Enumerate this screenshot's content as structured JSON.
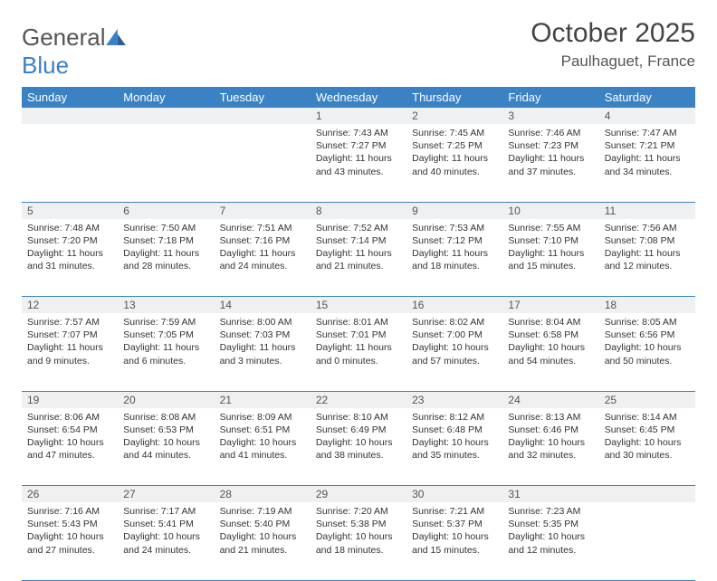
{
  "logo": {
    "text_gray": "General",
    "text_blue": "Blue"
  },
  "title": "October 2025",
  "location": "Paulhaguet, France",
  "colors": {
    "brand_blue": "#3b82c4",
    "daynum_bg": "#eef0f2",
    "text": "#333333"
  },
  "day_headers": [
    "Sunday",
    "Monday",
    "Tuesday",
    "Wednesday",
    "Thursday",
    "Friday",
    "Saturday"
  ],
  "weeks": [
    [
      null,
      null,
      null,
      {
        "n": "1",
        "sr": "7:43 AM",
        "ss": "7:27 PM",
        "dl": "11 hours and 43 minutes."
      },
      {
        "n": "2",
        "sr": "7:45 AM",
        "ss": "7:25 PM",
        "dl": "11 hours and 40 minutes."
      },
      {
        "n": "3",
        "sr": "7:46 AM",
        "ss": "7:23 PM",
        "dl": "11 hours and 37 minutes."
      },
      {
        "n": "4",
        "sr": "7:47 AM",
        "ss": "7:21 PM",
        "dl": "11 hours and 34 minutes."
      }
    ],
    [
      {
        "n": "5",
        "sr": "7:48 AM",
        "ss": "7:20 PM",
        "dl": "11 hours and 31 minutes."
      },
      {
        "n": "6",
        "sr": "7:50 AM",
        "ss": "7:18 PM",
        "dl": "11 hours and 28 minutes."
      },
      {
        "n": "7",
        "sr": "7:51 AM",
        "ss": "7:16 PM",
        "dl": "11 hours and 24 minutes."
      },
      {
        "n": "8",
        "sr": "7:52 AM",
        "ss": "7:14 PM",
        "dl": "11 hours and 21 minutes."
      },
      {
        "n": "9",
        "sr": "7:53 AM",
        "ss": "7:12 PM",
        "dl": "11 hours and 18 minutes."
      },
      {
        "n": "10",
        "sr": "7:55 AM",
        "ss": "7:10 PM",
        "dl": "11 hours and 15 minutes."
      },
      {
        "n": "11",
        "sr": "7:56 AM",
        "ss": "7:08 PM",
        "dl": "11 hours and 12 minutes."
      }
    ],
    [
      {
        "n": "12",
        "sr": "7:57 AM",
        "ss": "7:07 PM",
        "dl": "11 hours and 9 minutes."
      },
      {
        "n": "13",
        "sr": "7:59 AM",
        "ss": "7:05 PM",
        "dl": "11 hours and 6 minutes."
      },
      {
        "n": "14",
        "sr": "8:00 AM",
        "ss": "7:03 PM",
        "dl": "11 hours and 3 minutes."
      },
      {
        "n": "15",
        "sr": "8:01 AM",
        "ss": "7:01 PM",
        "dl": "11 hours and 0 minutes."
      },
      {
        "n": "16",
        "sr": "8:02 AM",
        "ss": "7:00 PM",
        "dl": "10 hours and 57 minutes."
      },
      {
        "n": "17",
        "sr": "8:04 AM",
        "ss": "6:58 PM",
        "dl": "10 hours and 54 minutes."
      },
      {
        "n": "18",
        "sr": "8:05 AM",
        "ss": "6:56 PM",
        "dl": "10 hours and 50 minutes."
      }
    ],
    [
      {
        "n": "19",
        "sr": "8:06 AM",
        "ss": "6:54 PM",
        "dl": "10 hours and 47 minutes."
      },
      {
        "n": "20",
        "sr": "8:08 AM",
        "ss": "6:53 PM",
        "dl": "10 hours and 44 minutes."
      },
      {
        "n": "21",
        "sr": "8:09 AM",
        "ss": "6:51 PM",
        "dl": "10 hours and 41 minutes."
      },
      {
        "n": "22",
        "sr": "8:10 AM",
        "ss": "6:49 PM",
        "dl": "10 hours and 38 minutes."
      },
      {
        "n": "23",
        "sr": "8:12 AM",
        "ss": "6:48 PM",
        "dl": "10 hours and 35 minutes."
      },
      {
        "n": "24",
        "sr": "8:13 AM",
        "ss": "6:46 PM",
        "dl": "10 hours and 32 minutes."
      },
      {
        "n": "25",
        "sr": "8:14 AM",
        "ss": "6:45 PM",
        "dl": "10 hours and 30 minutes."
      }
    ],
    [
      {
        "n": "26",
        "sr": "7:16 AM",
        "ss": "5:43 PM",
        "dl": "10 hours and 27 minutes."
      },
      {
        "n": "27",
        "sr": "7:17 AM",
        "ss": "5:41 PM",
        "dl": "10 hours and 24 minutes."
      },
      {
        "n": "28",
        "sr": "7:19 AM",
        "ss": "5:40 PM",
        "dl": "10 hours and 21 minutes."
      },
      {
        "n": "29",
        "sr": "7:20 AM",
        "ss": "5:38 PM",
        "dl": "10 hours and 18 minutes."
      },
      {
        "n": "30",
        "sr": "7:21 AM",
        "ss": "5:37 PM",
        "dl": "10 hours and 15 minutes."
      },
      {
        "n": "31",
        "sr": "7:23 AM",
        "ss": "5:35 PM",
        "dl": "10 hours and 12 minutes."
      },
      null
    ]
  ],
  "labels": {
    "sunrise": "Sunrise:",
    "sunset": "Sunset:",
    "daylight": "Daylight:"
  }
}
